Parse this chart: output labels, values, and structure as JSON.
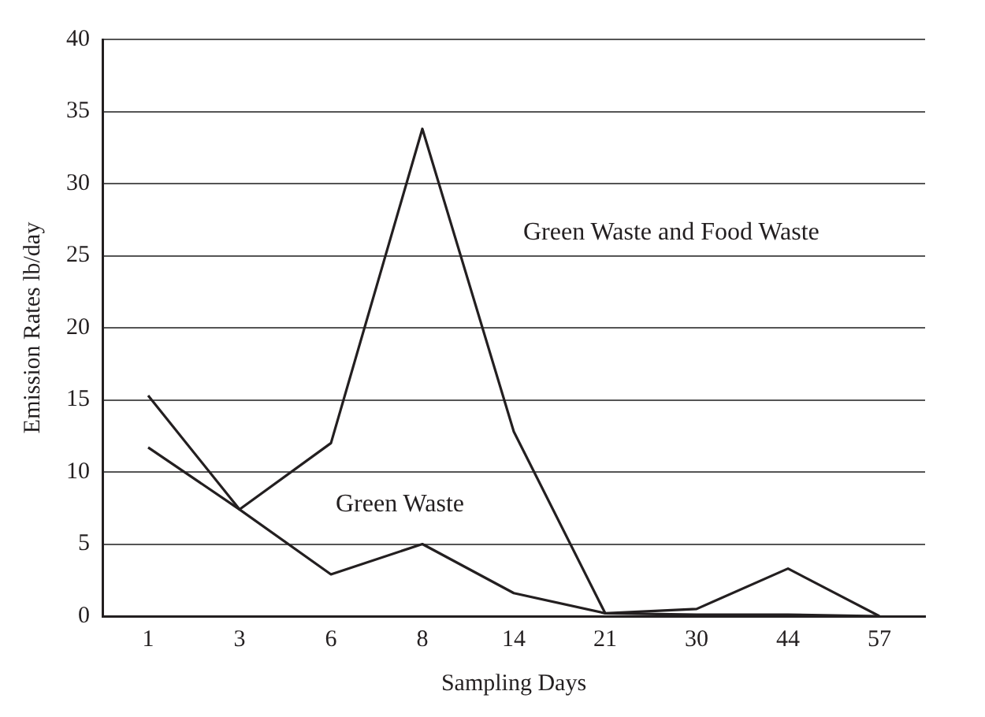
{
  "chart_data": {
    "type": "line",
    "xlabel": "Sampling Days",
    "ylabel": "Emission Rates lb/day",
    "categories": [
      "1",
      "3",
      "6",
      "8",
      "14",
      "21",
      "30",
      "44",
      "57"
    ],
    "series": [
      {
        "name": "Green Waste and Food Waste",
        "color": "#231f20",
        "values": [
          15.3,
          7.4,
          12,
          33.8,
          12.8,
          0.2,
          0.5,
          3.3,
          0
        ]
      },
      {
        "name": "Green Waste",
        "color": "#231f20",
        "values": [
          11.7,
          7.4,
          2.9,
          5,
          1.6,
          0.2,
          0.1,
          0.1,
          0
        ]
      }
    ],
    "ylim": [
      0,
      40
    ],
    "yticks": [
      0,
      5,
      10,
      15,
      20,
      25,
      30,
      35,
      40
    ],
    "grid": "y",
    "legend": false,
    "marker": "none",
    "line_style": "solid"
  }
}
